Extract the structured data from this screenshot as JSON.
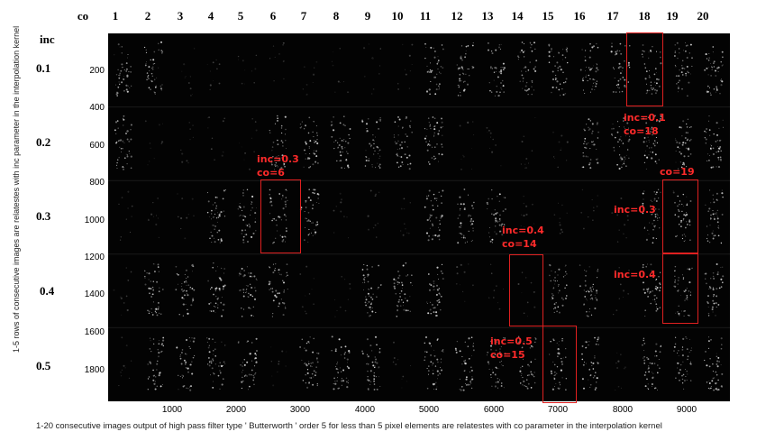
{
  "figure": {
    "column_header_title": "co",
    "row_header_title": "inc",
    "columns": [
      "1",
      "2",
      "3",
      "4",
      "5",
      "6",
      "7",
      "8",
      "9",
      "10",
      "11",
      "12",
      "13",
      "14",
      "15",
      "16",
      "17",
      "18",
      "19",
      "20"
    ],
    "rows": [
      "0.1",
      "0.2",
      "0.3",
      "0.4",
      "0.5"
    ],
    "y_ticks": [
      "200",
      "400",
      "600",
      "800",
      "1000",
      "1200",
      "1400",
      "1600",
      "1800"
    ],
    "x_ticks": [
      "1000",
      "2000",
      "3000",
      "4000",
      "5000",
      "6000",
      "7000",
      "8000",
      "9000"
    ],
    "y_axis_label": "1-5 rows of consecutive images are relatestes with inc parameter in the interpolation kernel",
    "x_axis_label": "1-20 consecutive images output of  high pass filter type ' Butterworth ' order 5 for less than 5 pixel elements are relatestes with co parameter in the interpolation kernel"
  },
  "annotations": {
    "a1_inc": "inc=0.1",
    "a1_co": "co=18",
    "a2_inc": "inc=0.3",
    "a2_co": "co=6",
    "a3_co": "co=19",
    "a3_inc": "inc=0.3",
    "a4_inc": "inc=0.4",
    "a4_co": "co=14",
    "a5_inc": "inc=0.4",
    "a6_inc": "inc=0.5",
    "a6_co": "co=15"
  },
  "colors": {
    "panel_bg": "#030303",
    "highlight": "#e02020",
    "annotation_text": "#ff2a2a"
  }
}
